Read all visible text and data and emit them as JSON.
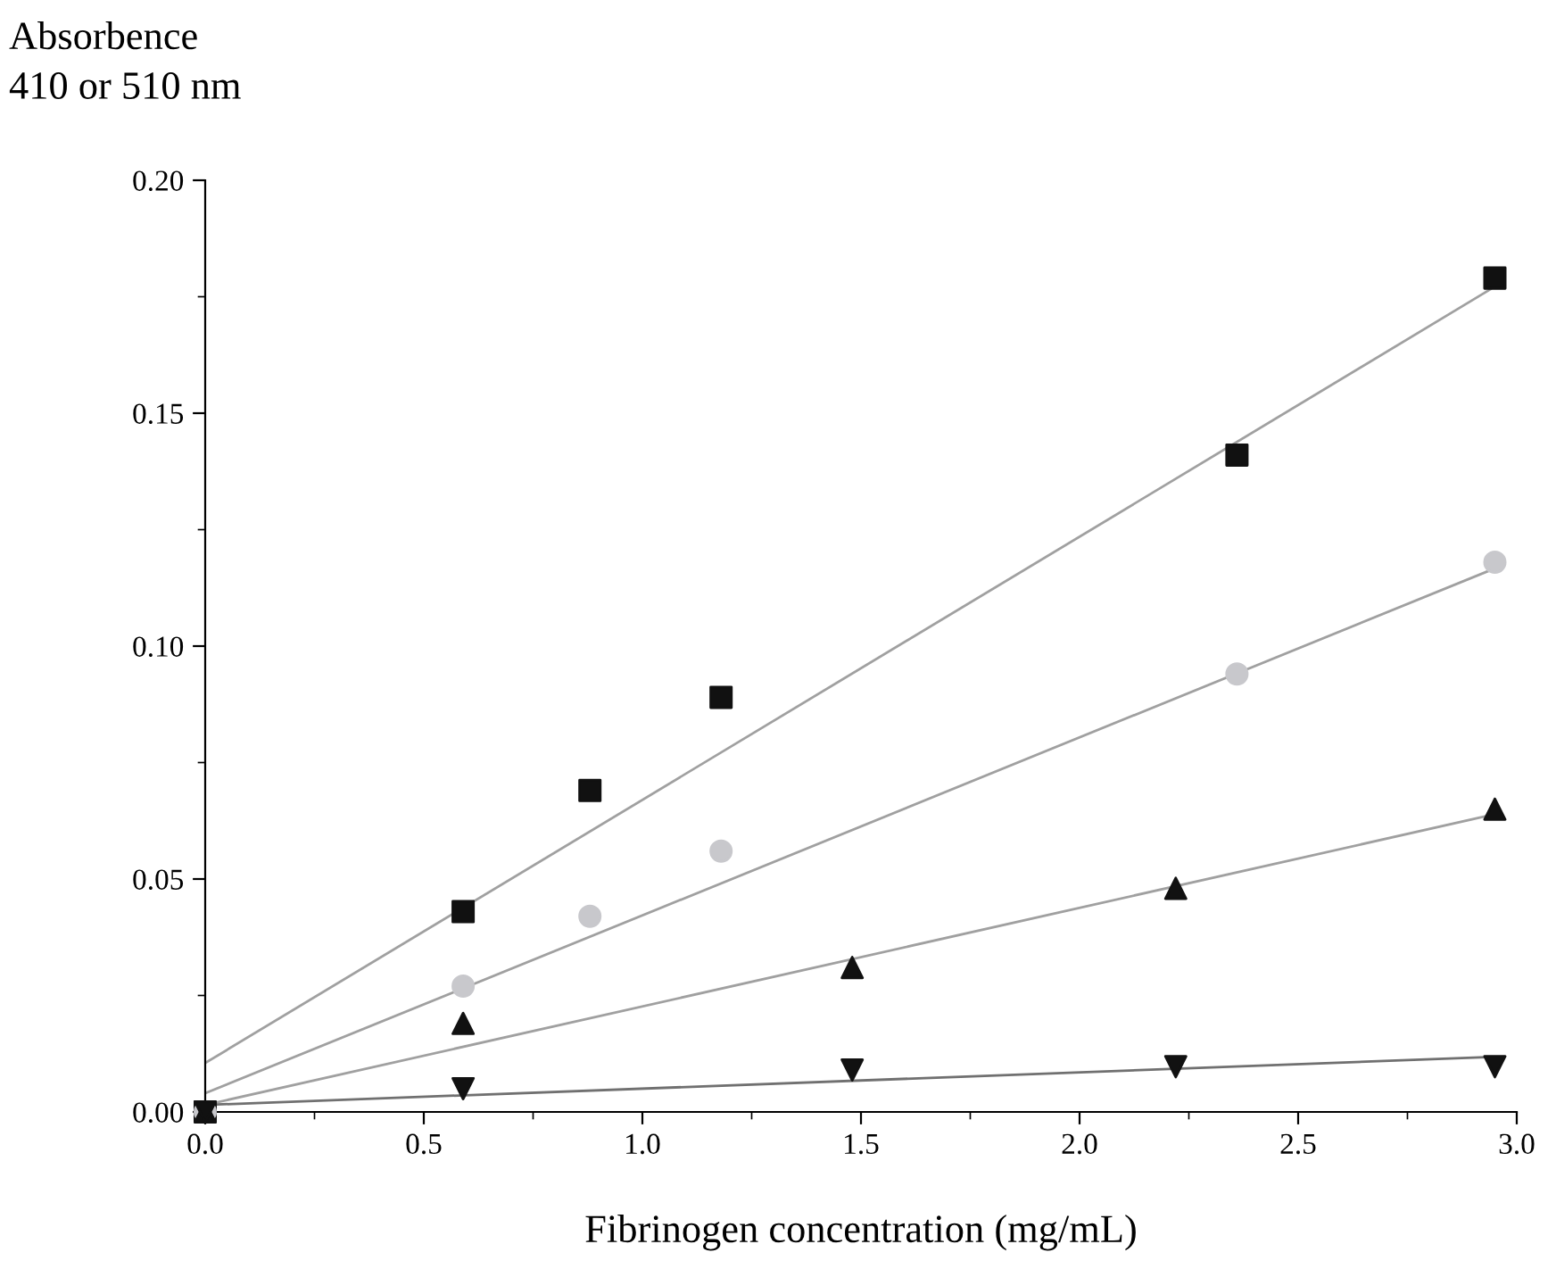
{
  "chart_data": {
    "type": "scatter",
    "xlabel": "Fibrinogen concentration (mg/mL)",
    "ylabel": "Absorbence\n410 or 510 nm",
    "xlim": [
      0,
      3.0
    ],
    "ylim": [
      0,
      0.2
    ],
    "xticks": [
      {
        "value": 0,
        "label": "0.0"
      },
      0.5,
      {
        "value": 1,
        "label": "1.0"
      },
      1.5,
      {
        "value": 2,
        "label": "2.0"
      },
      2.5,
      {
        "value": 3,
        "label": "3.0"
      }
    ],
    "yticks": [
      {
        "value": 0,
        "label": "0.00"
      },
      {
        "value": 0.05,
        "label": "0.05"
      },
      {
        "value": 0.1,
        "label": "0.10"
      },
      {
        "value": 0.15,
        "label": "0.15"
      },
      {
        "value": 0.2,
        "label": "0.20"
      }
    ],
    "grid": false,
    "legend": false,
    "series": [
      {
        "marker": "square",
        "color": "#111111",
        "x": [
          0,
          0.59,
          0.88,
          1.18,
          2.36,
          2.95
        ],
        "values": [
          0,
          0.043,
          0.069,
          0.089,
          0.141,
          0.179
        ]
      },
      {
        "marker": "circle",
        "color": "#c8c8cc",
        "x": [
          0,
          0.59,
          0.88,
          1.18,
          2.36,
          2.95
        ],
        "values": [
          0,
          0.027,
          0.042,
          0.056,
          0.094,
          0.118
        ]
      },
      {
        "marker": "triangle",
        "color": "#111111",
        "x": [
          0,
          0.59,
          1.48,
          2.22,
          2.95
        ],
        "values": [
          0,
          0.019,
          0.031,
          0.048,
          0.065
        ]
      },
      {
        "marker": "triangle_down",
        "color": "#111111",
        "x": [
          0,
          0.59,
          1.48,
          2.22,
          2.95
        ],
        "values": [
          0,
          0.005,
          0.009,
          0.0097,
          0.0097
        ]
      },
      {
        "type": "line",
        "marker": "none",
        "color": "#a0a0a0",
        "x": [
          0,
          2.94
        ],
        "values": [
          0.0105,
          0.1766
        ]
      },
      {
        "type": "line",
        "marker": "none",
        "color": "#a0a0a0",
        "x": [
          0,
          2.94
        ],
        "values": [
          0.004,
          0.1163
        ]
      },
      {
        "type": "line",
        "marker": "none",
        "color": "#a0a0a0",
        "x": [
          0,
          2.94
        ],
        "values": [
          0.0015,
          0.0637
        ]
      },
      {
        "type": "line",
        "marker": "none",
        "color": "#707070",
        "x": [
          0,
          2.94
        ],
        "values": [
          0.0015,
          0.0118
        ]
      }
    ]
  }
}
